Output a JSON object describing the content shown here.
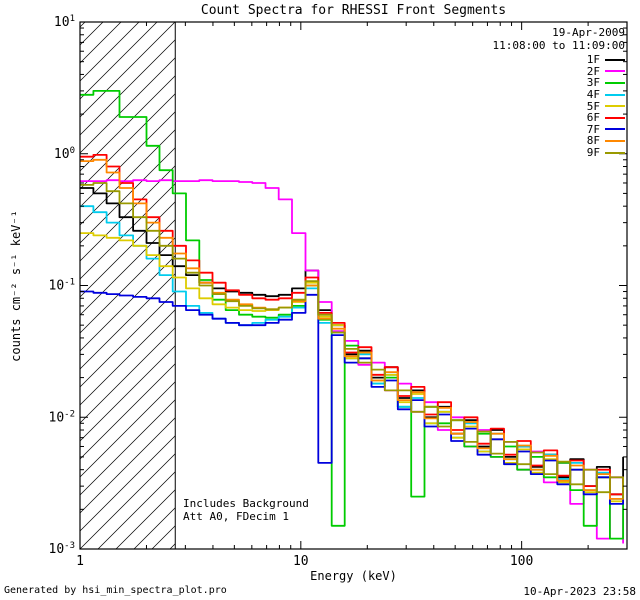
{
  "title": "Count Spectra for RHESSI Front Segments",
  "annotations": {
    "date": "19-Apr-2009",
    "time_range": "11:08:00 to 11:09:00",
    "note_line1": "Includes Background",
    "note_line2": "Att A0, FDecim 1"
  },
  "footer": {
    "left": "Generated by hsi_min_spectra_plot.pro",
    "right": "10-Apr-2023 23:58"
  },
  "chart_data": {
    "type": "line",
    "x_scale": "log",
    "y_scale": "log",
    "title": "Count Spectra for RHESSI Front Segments",
    "xlabel": "Energy (keV)",
    "ylabel": "counts cm⁻² s⁻¹ keV⁻¹",
    "xlim": [
      1,
      300
    ],
    "ylim": [
      0.001,
      10
    ],
    "x_tick_labels": [
      "1",
      "10",
      "100"
    ],
    "y_tick_labels": [
      "10^-3",
      "10^-2",
      "10^-1",
      "10^0",
      "10^1"
    ],
    "legend_position": "top-right",
    "hatch_region": {
      "x_start": 1,
      "x_end": 2.7
    },
    "x": [
      1.0,
      1.15,
      1.32,
      1.51,
      1.74,
      2.0,
      2.29,
      2.63,
      3.02,
      3.47,
      3.98,
      4.57,
      5.25,
      6.03,
      6.92,
      7.94,
      9.12,
      10.5,
      12.0,
      13.8,
      15.8,
      18.2,
      20.9,
      24.0,
      27.5,
      31.6,
      36.3,
      41.7,
      47.9,
      55.0,
      63.1,
      72.4,
      83.2,
      95.5,
      110,
      126,
      145,
      166,
      191,
      219,
      251,
      288
    ],
    "series": [
      {
        "name": "1F",
        "color": "#000000",
        "values": [
          0.55,
          0.5,
          0.42,
          0.33,
          0.26,
          0.21,
          0.17,
          0.14,
          0.12,
          0.105,
          0.095,
          0.09,
          0.088,
          0.085,
          0.083,
          0.085,
          0.095,
          0.13,
          0.065,
          0.05,
          0.03,
          0.032,
          0.02,
          0.024,
          0.014,
          0.016,
          0.01,
          0.012,
          0.0075,
          0.0095,
          0.006,
          0.008,
          0.005,
          0.006,
          0.0042,
          0.0052,
          0.0035,
          0.0048,
          0.003,
          0.0042,
          0.0026,
          0.005
        ]
      },
      {
        "name": "2F",
        "color": "#ff00ff",
        "values": [
          0.62,
          0.62,
          0.63,
          0.62,
          0.63,
          0.62,
          0.63,
          0.62,
          0.62,
          0.63,
          0.62,
          0.62,
          0.61,
          0.6,
          0.55,
          0.45,
          0.25,
          0.13,
          0.075,
          0.045,
          0.038,
          0.025,
          0.026,
          0.016,
          0.018,
          0.011,
          0.013,
          0.008,
          0.01,
          0.006,
          0.008,
          0.005,
          0.0065,
          0.004,
          0.0055,
          0.0032,
          0.0045,
          0.0022,
          0.004,
          0.0012,
          0.0035,
          0.0011
        ]
      },
      {
        "name": "3F",
        "color": "#00cc00",
        "values": [
          2.8,
          3.0,
          3.0,
          1.9,
          1.9,
          1.15,
          0.75,
          0.5,
          0.22,
          0.11,
          0.078,
          0.065,
          0.06,
          0.058,
          0.057,
          0.06,
          0.07,
          0.1,
          0.055,
          0.0015,
          0.035,
          0.028,
          0.018,
          0.02,
          0.012,
          0.0025,
          0.012,
          0.009,
          0.0095,
          0.006,
          0.0075,
          0.005,
          0.006,
          0.004,
          0.005,
          0.0035,
          0.0045,
          0.0028,
          0.0015,
          0.0035,
          0.0012,
          0.0028
        ]
      },
      {
        "name": "4F",
        "color": "#00ccee",
        "values": [
          0.4,
          0.36,
          0.3,
          0.24,
          0.2,
          0.16,
          0.12,
          0.09,
          0.07,
          0.062,
          0.056,
          0.052,
          0.05,
          0.052,
          0.055,
          0.058,
          0.068,
          0.095,
          0.052,
          0.044,
          0.028,
          0.03,
          0.018,
          0.021,
          0.012,
          0.014,
          0.009,
          0.011,
          0.007,
          0.009,
          0.0055,
          0.0075,
          0.0048,
          0.006,
          0.004,
          0.0052,
          0.0034,
          0.0045,
          0.0028,
          0.0038,
          0.0024,
          0.0032
        ]
      },
      {
        "name": "5F",
        "color": "#ddcc00",
        "values": [
          0.25,
          0.24,
          0.23,
          0.22,
          0.2,
          0.17,
          0.14,
          0.115,
          0.095,
          0.08,
          0.072,
          0.068,
          0.065,
          0.064,
          0.065,
          0.068,
          0.075,
          0.105,
          0.058,
          0.05,
          0.028,
          0.031,
          0.019,
          0.021,
          0.013,
          0.015,
          0.009,
          0.011,
          0.007,
          0.0085,
          0.0055,
          0.0068,
          0.0045,
          0.0057,
          0.0038,
          0.0048,
          0.0032,
          0.004,
          0.0027,
          0.0035,
          0.0023,
          0.003
        ]
      },
      {
        "name": "6F",
        "color": "#ff0000",
        "values": [
          0.95,
          0.98,
          0.8,
          0.6,
          0.45,
          0.33,
          0.26,
          0.2,
          0.155,
          0.125,
          0.105,
          0.092,
          0.085,
          0.08,
          0.078,
          0.08,
          0.088,
          0.115,
          0.062,
          0.052,
          0.031,
          0.034,
          0.021,
          0.024,
          0.0145,
          0.017,
          0.0105,
          0.013,
          0.008,
          0.01,
          0.0063,
          0.0082,
          0.0052,
          0.0066,
          0.0043,
          0.0056,
          0.0036,
          0.0047,
          0.003,
          0.004,
          0.0026,
          0.0034
        ]
      },
      {
        "name": "7F",
        "color": "#0000dd",
        "values": [
          0.09,
          0.088,
          0.086,
          0.084,
          0.082,
          0.08,
          0.075,
          0.07,
          0.065,
          0.06,
          0.056,
          0.052,
          0.05,
          0.05,
          0.052,
          0.055,
          0.062,
          0.085,
          0.0045,
          0.042,
          0.026,
          0.028,
          0.017,
          0.019,
          0.0115,
          0.0135,
          0.0085,
          0.0105,
          0.0066,
          0.0082,
          0.0052,
          0.0068,
          0.0044,
          0.0055,
          0.0037,
          0.0047,
          0.0031,
          0.004,
          0.0026,
          0.0035,
          0.0022,
          0.003
        ]
      },
      {
        "name": "8F",
        "color": "#ff8800",
        "values": [
          0.88,
          0.9,
          0.72,
          0.55,
          0.42,
          0.3,
          0.23,
          0.175,
          0.135,
          0.105,
          0.088,
          0.078,
          0.072,
          0.068,
          0.066,
          0.068,
          0.076,
          0.1,
          0.056,
          0.047,
          0.029,
          0.031,
          0.019,
          0.022,
          0.0135,
          0.0155,
          0.0098,
          0.0118,
          0.0075,
          0.0092,
          0.0058,
          0.0075,
          0.0048,
          0.0061,
          0.004,
          0.0051,
          0.0033,
          0.0043,
          0.0028,
          0.0037,
          0.0024,
          0.0031
        ]
      },
      {
        "name": "9F",
        "color": "#999900",
        "values": [
          0.58,
          0.6,
          0.52,
          0.42,
          0.33,
          0.26,
          0.2,
          0.16,
          0.125,
          0.1,
          0.086,
          0.076,
          0.07,
          0.067,
          0.066,
          0.068,
          0.078,
          0.108,
          0.06,
          0.044,
          0.033,
          0.026,
          0.023,
          0.016,
          0.016,
          0.011,
          0.012,
          0.0085,
          0.0095,
          0.0065,
          0.0078,
          0.0053,
          0.0065,
          0.0044,
          0.0054,
          0.0037,
          0.0046,
          0.0031,
          0.004,
          0.0027,
          0.0035,
          0.0024
        ]
      }
    ]
  }
}
